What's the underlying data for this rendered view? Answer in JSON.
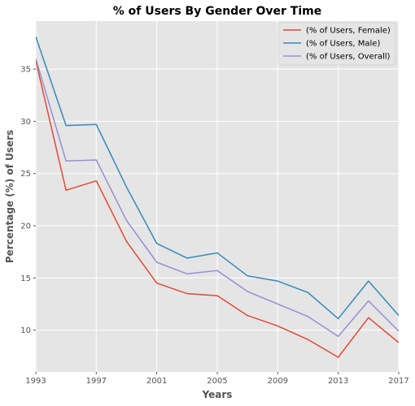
{
  "chart_data": {
    "type": "line",
    "title": "% of Users By Gender Over Time",
    "xlabel": "Years",
    "ylabel": "Percentage (%) of Users",
    "x": [
      1993,
      1995,
      1997,
      1999,
      2001,
      2003,
      2005,
      2007,
      2009,
      2011,
      2013,
      2015,
      2017
    ],
    "xlim": [
      1993,
      2017
    ],
    "ylim": [
      6.0,
      39.6
    ],
    "xticks": [
      1993,
      1997,
      2001,
      2005,
      2009,
      2013,
      2017
    ],
    "yticks": [
      10,
      15,
      20,
      25,
      30,
      35
    ],
    "grid": true,
    "legend_position": "top-right",
    "series": [
      {
        "name": "(% of Users, Female)",
        "color": "#E24A33",
        "values": [
          35.8,
          23.4,
          24.3,
          18.5,
          14.5,
          13.5,
          13.3,
          11.4,
          10.4,
          9.1,
          7.4,
          11.2,
          8.8
        ]
      },
      {
        "name": "(% of Users, Male)",
        "color": "#348ABD",
        "values": [
          38.1,
          29.6,
          29.7,
          23.7,
          18.3,
          16.9,
          17.4,
          15.2,
          14.7,
          13.6,
          11.1,
          14.7,
          11.4
        ]
      },
      {
        "name": "(% of Users, Overall)",
        "color": "#988ED5",
        "values": [
          36.0,
          26.2,
          26.3,
          20.5,
          16.5,
          15.4,
          15.7,
          13.7,
          12.5,
          11.3,
          9.4,
          12.8,
          9.9
        ]
      }
    ]
  }
}
